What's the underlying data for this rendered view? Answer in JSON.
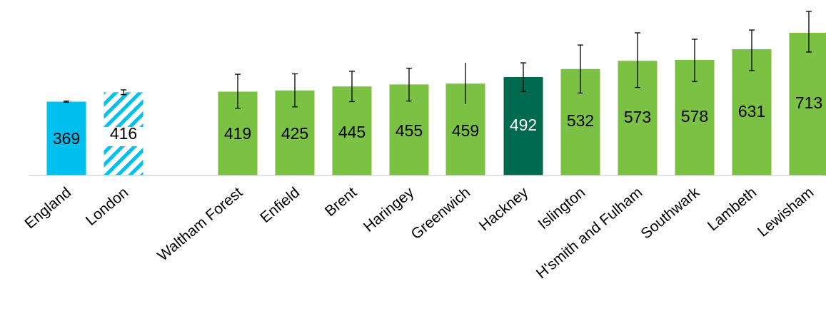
{
  "chart_data": {
    "type": "bar",
    "title": "",
    "xlabel": "",
    "ylabel": "",
    "ylim": [
      0,
      800
    ],
    "grid": false,
    "legend": "none",
    "categories": [
      "England",
      "London",
      "Waltham Forest",
      "Enfield",
      "Brent",
      "Haringey",
      "Greenwich",
      "Hackney",
      "Islington",
      "H'smith and Fulham",
      "Southwark",
      "Lambeth",
      "Lewisham"
    ],
    "values": [
      369,
      416,
      419,
      425,
      445,
      455,
      459,
      492,
      532,
      573,
      578,
      631,
      713
    ],
    "value_labels": [
      "369",
      "416",
      "419",
      "425",
      "445",
      "455",
      "459",
      "492",
      "532",
      "573",
      "578",
      "631",
      "713"
    ],
    "error_bars": {
      "lower": [
        366,
        404,
        336,
        343,
        369,
        372,
        357,
        420,
        412,
        440,
        470,
        524,
        617
      ],
      "upper": [
        372,
        428,
        506,
        508,
        521,
        536,
        563,
        563,
        652,
        713,
        681,
        727,
        820
      ]
    },
    "colors": {
      "england": "#00c0f0",
      "london_hatch": "#00c0f0",
      "borough": "#7bc143",
      "hackney": "#006a4e",
      "axis": "#d9d9d9",
      "error_bar": "#000000"
    },
    "bar_styles": [
      "england",
      "london_hatch",
      "borough",
      "borough",
      "borough",
      "borough",
      "borough",
      "hackney",
      "borough",
      "borough",
      "borough",
      "borough",
      "borough"
    ]
  }
}
